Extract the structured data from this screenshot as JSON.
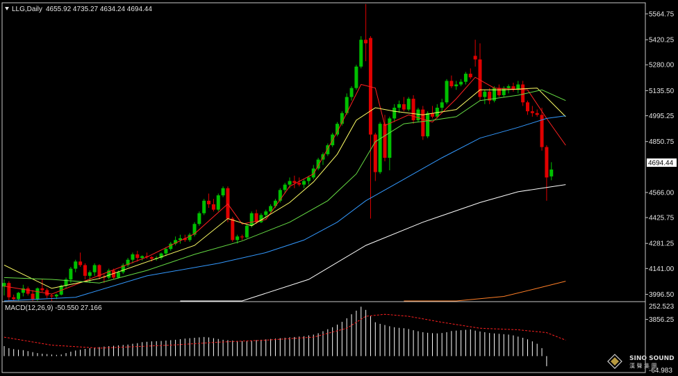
{
  "header": {
    "symbol": "LLG,Daily",
    "ohlc": "4655.92 4735.27 4634.24 4694.44"
  },
  "price_axis": {
    "ticks": [
      "5564.75",
      "5420.25",
      "5280.00",
      "5135.50",
      "4995.25",
      "4850.75",
      "4566.00",
      "4425.75",
      "4281.25",
      "4141.00",
      "3996.50",
      "3856.25"
    ],
    "current_price": "4694.44"
  },
  "macd": {
    "label": "MACD(12,26,9) -50.550 27.166",
    "axis_top": "252.523",
    "axis_bottom": "-64.983"
  },
  "watermark": {
    "brand": "SINO SOUND",
    "chinese": "漢 聲 集 團"
  },
  "colors": {
    "background": "#000000",
    "frame": "#c8c8c8",
    "bull": "#00c000",
    "bear": "#e00000",
    "ma5": "#ff2020",
    "ma10": "#ffff66",
    "ma20": "#66dd44",
    "ma60": "#3399ff",
    "ma120": "#ffffff",
    "ma250": "#ff7f27",
    "macd_hist": "#ffffff",
    "macd_signal": "#ff2020"
  },
  "chart_data": {
    "type": "candlestick",
    "symbol": "LLG",
    "timeframe": "Daily",
    "ylim": [
      3856.25,
      5650
    ],
    "last": {
      "open": 4655.92,
      "high": 4735.27,
      "low": 4634.24,
      "close": 4694.44
    },
    "candles": [
      [
        4040,
        4080,
        3990,
        4060
      ],
      [
        4060,
        4070,
        3950,
        3980
      ],
      [
        3980,
        3995,
        3950,
        3970
      ],
      [
        3970,
        4010,
        3960,
        4005
      ],
      [
        4005,
        4050,
        3985,
        4030
      ],
      [
        4030,
        4040,
        3990,
        4000
      ],
      [
        4000,
        4020,
        3960,
        3970
      ],
      [
        3970,
        4035,
        3960,
        4030
      ],
      [
        4030,
        4080,
        4010,
        4020
      ],
      [
        4020,
        4030,
        3975,
        3990
      ],
      [
        3990,
        4000,
        3960,
        3985
      ],
      [
        3985,
        4000,
        3970,
        3995
      ],
      [
        3995,
        4050,
        3990,
        4045
      ],
      [
        4045,
        4090,
        4030,
        4080
      ],
      [
        4080,
        4150,
        4060,
        4140
      ],
      [
        4140,
        4190,
        4120,
        4180
      ],
      [
        4180,
        4230,
        4150,
        4160
      ],
      [
        4160,
        4170,
        4080,
        4100
      ],
      [
        4100,
        4130,
        4060,
        4120
      ],
      [
        4120,
        4170,
        4100,
        4160
      ],
      [
        4160,
        4165,
        4080,
        4095
      ],
      [
        4095,
        4110,
        4060,
        4090
      ],
      [
        4090,
        4140,
        4080,
        4130
      ],
      [
        4130,
        4140,
        4080,
        4090
      ],
      [
        4090,
        4130,
        4085,
        4120
      ],
      [
        4120,
        4170,
        4110,
        4160
      ],
      [
        4160,
        4200,
        4150,
        4190
      ],
      [
        4190,
        4230,
        4170,
        4220
      ],
      [
        4220,
        4240,
        4180,
        4200
      ],
      [
        4200,
        4215,
        4185,
        4210
      ],
      [
        4210,
        4230,
        4195,
        4205
      ],
      [
        4205,
        4210,
        4180,
        4195
      ],
      [
        4195,
        4210,
        4185,
        4200
      ],
      [
        4200,
        4230,
        4190,
        4225
      ],
      [
        4225,
        4260,
        4210,
        4250
      ],
      [
        4250,
        4290,
        4240,
        4280
      ],
      [
        4280,
        4320,
        4270,
        4300
      ],
      [
        4300,
        4330,
        4280,
        4310
      ],
      [
        4310,
        4330,
        4290,
        4300
      ],
      [
        4300,
        4340,
        4290,
        4330
      ],
      [
        4330,
        4400,
        4320,
        4390
      ],
      [
        4390,
        4460,
        4380,
        4450
      ],
      [
        4450,
        4530,
        4440,
        4520
      ],
      [
        4520,
        4560,
        4480,
        4500
      ],
      [
        4500,
        4530,
        4460,
        4470
      ],
      [
        4470,
        4560,
        4460,
        4550
      ],
      [
        4550,
        4600,
        4540,
        4590
      ],
      [
        4590,
        4600,
        4400,
        4420
      ],
      [
        4420,
        4430,
        4290,
        4300
      ],
      [
        4300,
        4330,
        4280,
        4320
      ],
      [
        4320,
        4330,
        4300,
        4315
      ],
      [
        4315,
        4390,
        4310,
        4380
      ],
      [
        4380,
        4460,
        4370,
        4450
      ],
      [
        4450,
        4470,
        4390,
        4400
      ],
      [
        4400,
        4450,
        4395,
        4440
      ],
      [
        4440,
        4470,
        4420,
        4460
      ],
      [
        4460,
        4500,
        4450,
        4490
      ],
      [
        4490,
        4530,
        4480,
        4520
      ],
      [
        4520,
        4590,
        4510,
        4580
      ],
      [
        4580,
        4620,
        4560,
        4610
      ],
      [
        4610,
        4650,
        4590,
        4630
      ],
      [
        4630,
        4660,
        4590,
        4620
      ],
      [
        4620,
        4650,
        4600,
        4610
      ],
      [
        4610,
        4640,
        4590,
        4630
      ],
      [
        4630,
        4660,
        4610,
        4650
      ],
      [
        4650,
        4720,
        4640,
        4700
      ],
      [
        4700,
        4760,
        4690,
        4750
      ],
      [
        4750,
        4790,
        4720,
        4780
      ],
      [
        4780,
        4840,
        4770,
        4830
      ],
      [
        4830,
        4900,
        4820,
        4890
      ],
      [
        4890,
        4960,
        4880,
        4950
      ],
      [
        4950,
        5020,
        4940,
        5010
      ],
      [
        5010,
        5120,
        5000,
        5100
      ],
      [
        5100,
        5160,
        5080,
        5150
      ],
      [
        5150,
        5280,
        5140,
        5270
      ],
      [
        5270,
        5440,
        5260,
        5420
      ],
      [
        5420,
        5620,
        5300,
        5400
      ],
      [
        5430,
        5440,
        4420,
        4890
      ],
      [
        4890,
        4900,
        4630,
        4680
      ],
      [
        4680,
        4960,
        4670,
        4950
      ],
      [
        4950,
        5000,
        4740,
        4760
      ],
      [
        4760,
        4990,
        4690,
        4980
      ],
      [
        4980,
        5060,
        4960,
        5040
      ],
      [
        5040,
        5080,
        5010,
        5060
      ],
      [
        5060,
        5100,
        5020,
        5030
      ],
      [
        5030,
        5100,
        5020,
        5090
      ],
      [
        5090,
        5110,
        4950,
        4970
      ],
      [
        4970,
        5040,
        4960,
        5030
      ],
      [
        5030,
        5050,
        4860,
        4880
      ],
      [
        4880,
        5020,
        4870,
        5010
      ],
      [
        5010,
        5050,
        4980,
        4990
      ],
      [
        4990,
        5060,
        4980,
        5040
      ],
      [
        5040,
        5090,
        5010,
        5070
      ],
      [
        5070,
        5200,
        5060,
        5190
      ],
      [
        5190,
        5220,
        5150,
        5160
      ],
      [
        5160,
        5190,
        5140,
        5170
      ],
      [
        5170,
        5200,
        5160,
        5185
      ],
      [
        5185,
        5240,
        5170,
        5230
      ],
      [
        5230,
        5260,
        5200,
        5210
      ],
      [
        5330,
        5420,
        5270,
        5310
      ],
      [
        5310,
        5400,
        5080,
        5100
      ],
      [
        5100,
        5140,
        5060,
        5130
      ],
      [
        5130,
        5150,
        5060,
        5080
      ],
      [
        5080,
        5160,
        5070,
        5150
      ],
      [
        5150,
        5170,
        5100,
        5110
      ],
      [
        5110,
        5160,
        5100,
        5150
      ],
      [
        5150,
        5170,
        5120,
        5160
      ],
      [
        5160,
        5180,
        5130,
        5140
      ],
      [
        5140,
        5190,
        5120,
        5170
      ],
      [
        5170,
        5190,
        5050,
        5070
      ],
      [
        5070,
        5080,
        5000,
        5020
      ],
      [
        5020,
        5050,
        4990,
        5010
      ],
      [
        5010,
        5030,
        4990,
        5000
      ],
      [
        5000,
        5040,
        4800,
        4820
      ],
      [
        4820,
        4830,
        4520,
        4650
      ],
      [
        4655.92,
        4735.27,
        4634.24,
        4694.44
      ]
    ],
    "moving_averages": {
      "ma5": [
        [
          0,
          4042
        ],
        [
          10,
          3998
        ],
        [
          20,
          4103
        ],
        [
          30,
          4205
        ],
        [
          40,
          4335
        ],
        [
          47,
          4502
        ],
        [
          50,
          4390
        ],
        [
          55,
          4415
        ],
        [
          60,
          4600
        ],
        [
          65,
          4670
        ],
        [
          70,
          4905
        ],
        [
          75,
          5170
        ],
        [
          78,
          5150
        ],
        [
          80,
          4940
        ],
        [
          85,
          5000
        ],
        [
          90,
          4960
        ],
        [
          95,
          5090
        ],
        [
          99,
          5210
        ],
        [
          103,
          5150
        ],
        [
          110,
          5140
        ],
        [
          114,
          4980
        ],
        [
          118,
          4830
        ]
      ],
      "ma10": [
        [
          0,
          4160
        ],
        [
          10,
          4030
        ],
        [
          20,
          4085
        ],
        [
          30,
          4178
        ],
        [
          40,
          4270
        ],
        [
          47,
          4420
        ],
        [
          52,
          4380
        ],
        [
          60,
          4510
        ],
        [
          65,
          4625
        ],
        [
          70,
          4780
        ],
        [
          74,
          4970
        ],
        [
          78,
          5040
        ],
        [
          82,
          5020
        ],
        [
          88,
          5000
        ],
        [
          95,
          5030
        ],
        [
          100,
          5140
        ],
        [
          105,
          5140
        ],
        [
          112,
          5150
        ],
        [
          118,
          4990
        ]
      ],
      "ma20": [
        [
          0,
          4090
        ],
        [
          10,
          4080
        ],
        [
          20,
          4060
        ],
        [
          30,
          4130
        ],
        [
          40,
          4220
        ],
        [
          50,
          4295
        ],
        [
          60,
          4400
        ],
        [
          68,
          4520
        ],
        [
          74,
          4670
        ],
        [
          78,
          4850
        ],
        [
          84,
          4950
        ],
        [
          90,
          4970
        ],
        [
          95,
          4990
        ],
        [
          100,
          5080
        ],
        [
          108,
          5110
        ],
        [
          113,
          5140
        ],
        [
          118,
          5080
        ]
      ],
      "ma60": [
        [
          0,
          3905
        ],
        [
          15,
          3980
        ],
        [
          30,
          4100
        ],
        [
          45,
          4170
        ],
        [
          55,
          4230
        ],
        [
          63,
          4300
        ],
        [
          70,
          4400
        ],
        [
          76,
          4520
        ],
        [
          84,
          4640
        ],
        [
          92,
          4760
        ],
        [
          100,
          4870
        ],
        [
          108,
          4930
        ],
        [
          114,
          4980
        ],
        [
          118,
          4995
        ]
      ],
      "ma120": [
        [
          37,
          3856.25
        ],
        [
          50,
          3930
        ],
        [
          64,
          4080
        ],
        [
          76,
          4270
        ],
        [
          88,
          4400
        ],
        [
          100,
          4510
        ],
        [
          108,
          4570
        ],
        [
          118,
          4610
        ]
      ],
      "ma250": [
        [
          84,
          3856.25
        ],
        [
          95,
          3920
        ],
        [
          105,
          3985
        ],
        [
          112,
          4030
        ],
        [
          118,
          4070
        ]
      ]
    },
    "macd": {
      "label": "MACD(12,26,9)",
      "macd_value": -50.55,
      "signal_value": 27.166,
      "ylim": [
        -64.983,
        252.523
      ],
      "histogram": [
        50,
        40,
        35,
        32,
        30,
        25,
        20,
        15,
        12,
        10,
        8,
        6,
        8,
        15,
        22,
        28,
        32,
        36,
        40,
        42,
        45,
        48,
        50,
        52,
        54,
        56,
        58,
        62,
        65,
        70,
        72,
        74,
        75,
        76,
        78,
        80,
        82,
        85,
        88,
        90,
        92,
        94,
        96,
        94,
        90,
        86,
        82,
        80,
        78,
        76,
        75,
        76,
        78,
        80,
        82,
        84,
        86,
        88,
        90,
        92,
        94,
        96,
        98,
        100,
        104,
        108,
        115,
        125,
        135,
        145,
        158,
        172,
        190,
        210,
        228,
        248,
        232,
        200,
        170,
        162,
        156,
        150,
        145,
        142,
        140,
        136,
        130,
        125,
        120,
        117,
        115,
        114,
        116,
        120,
        126,
        128,
        130,
        132,
        134,
        128,
        124,
        120,
        116,
        114,
        112,
        110,
        108,
        104,
        98,
        92,
        84,
        74,
        62,
        40,
        -50.55
      ],
      "signal": [
        [
          0,
          95
        ],
        [
          10,
          55
        ],
        [
          20,
          40
        ],
        [
          35,
          55
        ],
        [
          45,
          70
        ],
        [
          55,
          80
        ],
        [
          65,
          95
        ],
        [
          72,
          140
        ],
        [
          76,
          200
        ],
        [
          80,
          210
        ],
        [
          85,
          200
        ],
        [
          92,
          170
        ],
        [
          100,
          140
        ],
        [
          108,
          132
        ],
        [
          114,
          118
        ],
        [
          118,
          80
        ]
      ]
    }
  }
}
